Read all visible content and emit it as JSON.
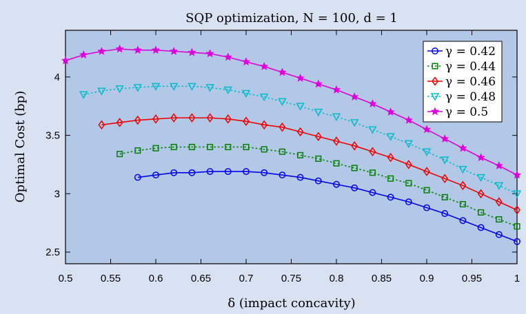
{
  "chart_data": {
    "type": "line",
    "title": "SQP optimization, N = 100, d = 1",
    "xlabel": "δ (impact concavity)",
    "ylabel": "Optimal Cost (bp)",
    "xlim": [
      0.5,
      1
    ],
    "ylim": [
      2.4,
      4.4
    ],
    "xticks": [
      "0.5",
      "0.55",
      "0.6",
      "0.65",
      "0.7",
      "0.75",
      "0.8",
      "0.85",
      "0.9",
      "0.95",
      "1"
    ],
    "yticks": [
      "2.5",
      "3",
      "3.5",
      "4"
    ],
    "grid": false,
    "legend_position": "top-right",
    "background_color": "#b3c8e6",
    "series": [
      {
        "name": "γ = 0.42",
        "color": "#0000ee",
        "marker": "circle",
        "line": "solid",
        "x": [
          0.58,
          0.6,
          0.62,
          0.64,
          0.66,
          0.68,
          0.7,
          0.72,
          0.74,
          0.76,
          0.78,
          0.8,
          0.82,
          0.84,
          0.86,
          0.88,
          0.9,
          0.92,
          0.94,
          0.96,
          0.98,
          1.0
        ],
        "y": [
          3.14,
          3.16,
          3.18,
          3.18,
          3.19,
          3.19,
          3.19,
          3.18,
          3.16,
          3.14,
          3.11,
          3.08,
          3.05,
          3.01,
          2.97,
          2.93,
          2.88,
          2.83,
          2.77,
          2.71,
          2.65,
          2.59
        ]
      },
      {
        "name": "γ = 0.44",
        "color": "#008000",
        "marker": "square",
        "line": "dotted",
        "x": [
          0.56,
          0.58,
          0.6,
          0.62,
          0.64,
          0.66,
          0.68,
          0.7,
          0.72,
          0.74,
          0.76,
          0.78,
          0.8,
          0.82,
          0.84,
          0.86,
          0.88,
          0.9,
          0.92,
          0.94,
          0.96,
          0.98,
          1.0
        ],
        "y": [
          3.34,
          3.37,
          3.39,
          3.4,
          3.4,
          3.4,
          3.4,
          3.4,
          3.38,
          3.36,
          3.33,
          3.3,
          3.26,
          3.22,
          3.18,
          3.13,
          3.09,
          3.03,
          2.97,
          2.91,
          2.84,
          2.78,
          2.72
        ]
      },
      {
        "name": "γ = 0.46",
        "color": "#ee0000",
        "marker": "diamond",
        "line": "solid",
        "x": [
          0.54,
          0.56,
          0.58,
          0.6,
          0.62,
          0.64,
          0.66,
          0.68,
          0.7,
          0.72,
          0.74,
          0.76,
          0.78,
          0.8,
          0.82,
          0.84,
          0.86,
          0.88,
          0.9,
          0.92,
          0.94,
          0.96,
          0.98,
          1.0
        ],
        "y": [
          3.59,
          3.61,
          3.63,
          3.64,
          3.65,
          3.65,
          3.65,
          3.64,
          3.62,
          3.59,
          3.57,
          3.53,
          3.49,
          3.45,
          3.41,
          3.36,
          3.31,
          3.25,
          3.19,
          3.13,
          3.07,
          3.0,
          2.93,
          2.86
        ]
      },
      {
        "name": "γ = 0.48",
        "color": "#00bbcc",
        "marker": "triangle-down",
        "line": "dotted",
        "x": [
          0.52,
          0.54,
          0.56,
          0.58,
          0.6,
          0.62,
          0.64,
          0.66,
          0.68,
          0.7,
          0.72,
          0.74,
          0.76,
          0.78,
          0.8,
          0.82,
          0.84,
          0.86,
          0.88,
          0.9,
          0.92,
          0.94,
          0.96,
          0.98,
          1.0
        ],
        "y": [
          3.85,
          3.88,
          3.9,
          3.91,
          3.92,
          3.92,
          3.92,
          3.91,
          3.89,
          3.86,
          3.83,
          3.79,
          3.75,
          3.7,
          3.66,
          3.61,
          3.55,
          3.49,
          3.43,
          3.36,
          3.29,
          3.21,
          3.14,
          3.07,
          3.0
        ]
      },
      {
        "name": "γ = 0.5",
        "color": "#dd00dd",
        "marker": "star",
        "line": "solid",
        "x": [
          0.5,
          0.52,
          0.54,
          0.56,
          0.58,
          0.6,
          0.62,
          0.64,
          0.66,
          0.68,
          0.7,
          0.72,
          0.74,
          0.76,
          0.78,
          0.8,
          0.82,
          0.84,
          0.86,
          0.88,
          0.9,
          0.92,
          0.94,
          0.96,
          0.98,
          1.0
        ],
        "y": [
          4.14,
          4.19,
          4.22,
          4.24,
          4.23,
          4.23,
          4.22,
          4.21,
          4.2,
          4.17,
          4.13,
          4.09,
          4.04,
          3.99,
          3.94,
          3.89,
          3.83,
          3.77,
          3.7,
          3.63,
          3.55,
          3.47,
          3.39,
          3.31,
          3.24,
          3.16
        ]
      }
    ]
  }
}
